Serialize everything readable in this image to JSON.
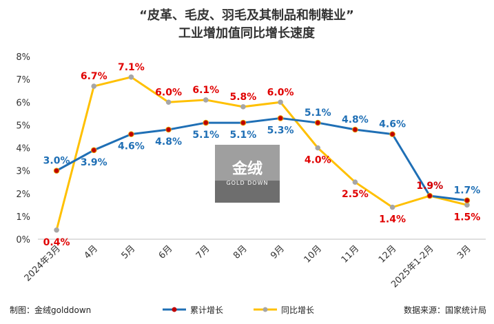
{
  "chart_data": {
    "type": "line",
    "title_line1": "“皮革、毛皮、羽毛及其制品和制鞋业”",
    "title_line2": "工业增加值同比增长速度",
    "categories": [
      "2024年3月",
      "4月",
      "5月",
      "6月",
      "7月",
      "8月",
      "9月",
      "10月",
      "11月",
      "12月",
      "2025年1-2月",
      "3月"
    ],
    "y_ticks": [
      "0%",
      "1%",
      "2%",
      "3%",
      "4%",
      "5%",
      "6%",
      "7%",
      "8%"
    ],
    "ylim": [
      0,
      8
    ],
    "grid": false,
    "legend_position": "bottom",
    "series": [
      {
        "name": "累计增长",
        "values": [
          3.0,
          3.9,
          4.6,
          4.8,
          5.1,
          5.1,
          5.3,
          5.1,
          4.8,
          4.6,
          1.9,
          1.7
        ],
        "labels": [
          "3.0%",
          "3.9%",
          "4.6%",
          "4.8%",
          "5.1%",
          "5.1%",
          "5.3%",
          "5.1%",
          "4.8%",
          "4.6%",
          "1.9%",
          "1.7%"
        ],
        "color": "#1F6FB5",
        "label_color": "#1F6FB5",
        "marker_color": "#C00000",
        "marker_ring": "#E8A400"
      },
      {
        "name": "同比增长",
        "values": [
          0.4,
          6.7,
          7.1,
          6.0,
          6.1,
          5.8,
          6.0,
          4.0,
          2.5,
          1.4,
          1.9,
          1.5
        ],
        "labels": [
          "0.4%",
          "6.7%",
          "7.1%",
          "6.0%",
          "6.1%",
          "5.8%",
          "6.0%",
          "4.0%",
          "2.5%",
          "1.4%",
          "1.9%",
          "1.5%"
        ],
        "color": "#FFC000",
        "label_color": "#E00000",
        "marker_color": "#A6A6A6"
      }
    ]
  },
  "footer": {
    "maker": "制图：金绒golddown",
    "source": "数据来源：国家统计局"
  },
  "watermark": {
    "main": "金绒",
    "sub": "GOLD DOWN"
  }
}
